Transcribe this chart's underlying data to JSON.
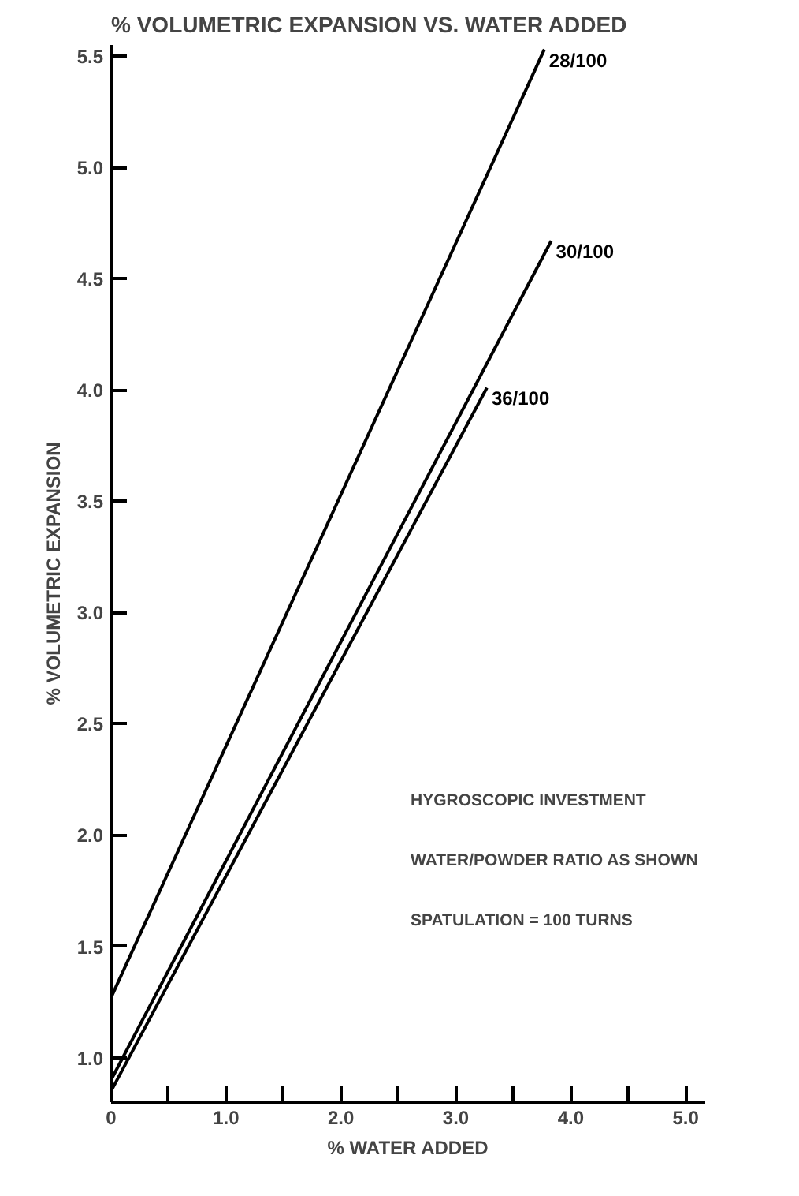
{
  "chart_data": {
    "type": "line",
    "title": "% VOLUMETRIC EXPANSION VS. WATER ADDED",
    "xlabel": "% WATER ADDED",
    "ylabel": "% VOLUMETRIC EXPANSION",
    "xlim": [
      0,
      5.17
    ],
    "ylim": [
      0.8,
      5.55
    ],
    "xticks": [
      {
        "value": 0,
        "label": "0"
      },
      {
        "value": 0.5,
        "label": null
      },
      {
        "value": 1,
        "label": "1.0"
      },
      {
        "value": 1.5,
        "label": null
      },
      {
        "value": 2,
        "label": "2.0"
      },
      {
        "value": 2.5,
        "label": null
      },
      {
        "value": 3,
        "label": "3.0"
      },
      {
        "value": 3.5,
        "label": null
      },
      {
        "value": 4,
        "label": "4.0"
      },
      {
        "value": 4.5,
        "label": null
      },
      {
        "value": 5,
        "label": "5.0"
      }
    ],
    "yticks": [
      {
        "value": 1,
        "label": "1.0"
      },
      1.5,
      {
        "value": 2,
        "label": "2.0"
      },
      2.5,
      {
        "value": 3,
        "label": "3.0"
      },
      3.5,
      {
        "value": 4,
        "label": "4.0"
      },
      4.5,
      {
        "value": 5,
        "label": "5.0"
      },
      5.5
    ],
    "grid": false,
    "legend": false,
    "line_style": "solid",
    "series": [
      {
        "name": "28/100",
        "color": "#000000",
        "x": [
          0,
          3.77
        ],
        "values": [
          1.27,
          5.53
        ]
      },
      {
        "name": "30/100",
        "color": "#000000",
        "x": [
          0,
          3.83
        ],
        "values": [
          0.9,
          4.67
        ]
      },
      {
        "name": "36/100",
        "color": "#000000",
        "x": [
          0,
          3.27
        ],
        "values": [
          0.85,
          4.01
        ]
      }
    ],
    "annotations": [
      "HYGROSCOPIC INVESTMENT",
      "WATER/POWDER RATIO AS SHOWN",
      "SPATULATION = 100 TURNS"
    ]
  }
}
